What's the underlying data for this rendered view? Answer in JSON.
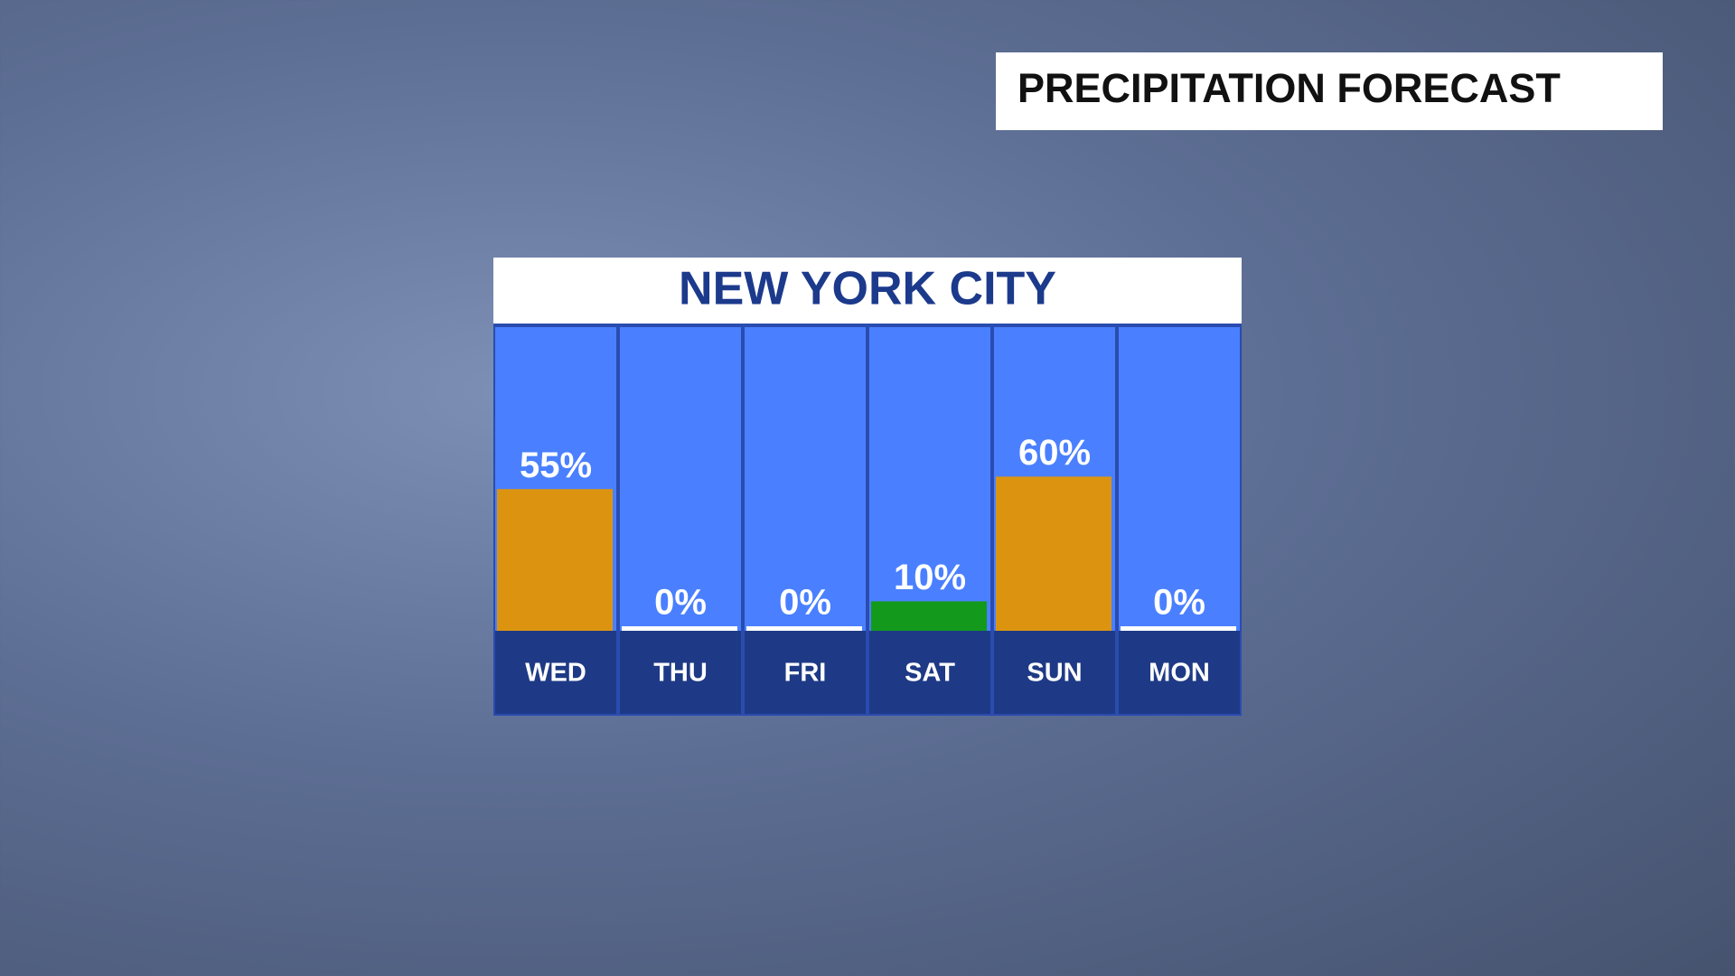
{
  "chart_data": {
    "type": "bar",
    "title": "PRECIPITATION FORECAST",
    "subtitle": "NEW YORK CITY",
    "categories": [
      "WED",
      "THU",
      "FRI",
      "SAT",
      "SUN",
      "MON"
    ],
    "values": [
      55,
      0,
      0,
      10,
      60,
      0
    ],
    "value_labels": [
      "55%",
      "0%",
      "0%",
      "10%",
      "60%",
      "0%"
    ],
    "colors": [
      "#dc9410",
      "#ffffff",
      "#ffffff",
      "#139a1c",
      "#dc9410",
      "#ffffff"
    ]
  }
}
